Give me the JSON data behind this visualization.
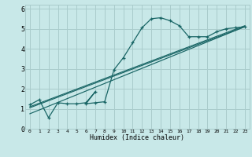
{
  "xlabel": "Humidex (Indice chaleur)",
  "ylabel": "",
  "xlim": [
    -0.5,
    23.5
  ],
  "ylim": [
    0,
    6.2
  ],
  "xticks": [
    0,
    1,
    2,
    3,
    4,
    5,
    6,
    7,
    8,
    9,
    10,
    11,
    12,
    13,
    14,
    15,
    16,
    17,
    18,
    19,
    20,
    21,
    22,
    23
  ],
  "yticks": [
    0,
    1,
    2,
    3,
    4,
    5,
    6
  ],
  "bg_color": "#c8e8e8",
  "grid_color": "#aacccc",
  "line_color": "#1a6666",
  "curve1_x": [
    0,
    1,
    2,
    3,
    4,
    5,
    6,
    7,
    6,
    7,
    8,
    9,
    10,
    11,
    12,
    13,
    14,
    15,
    16,
    17,
    18,
    19,
    20,
    21,
    22,
    23
  ],
  "curve1_y": [
    1.2,
    1.45,
    0.55,
    1.3,
    1.25,
    1.25,
    1.3,
    1.85,
    1.25,
    1.3,
    1.35,
    2.95,
    3.55,
    4.3,
    5.05,
    5.5,
    5.55,
    5.4,
    5.15,
    4.6,
    4.6,
    4.6,
    4.85,
    5.0,
    5.05,
    5.1
  ],
  "line2_x": [
    0,
    23
  ],
  "line2_y": [
    1.05,
    5.1
  ],
  "line3_x": [
    0,
    23
  ],
  "line3_y": [
    0.75,
    5.1
  ],
  "line4_x": [
    0,
    23
  ],
  "line4_y": [
    1.1,
    5.15
  ]
}
